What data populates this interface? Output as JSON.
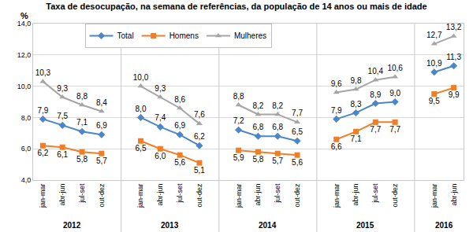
{
  "chart_data": {
    "type": "line",
    "title": "Taxa de desocupação, na semana de referências, da população de 14 anos ou mais de idade",
    "y_label": "%",
    "categories": [
      "jan-mar",
      "abr-jun",
      "jul-set",
      "out-dez",
      null,
      "jan-mar",
      "abr-jun",
      "jul-set",
      "out-dez",
      null,
      "jan-mar",
      "abr-jun",
      "jul-set",
      "out-dez",
      null,
      "jan-mar",
      "abr-jun",
      "jul-set",
      "out-dez",
      null,
      "jan-mar",
      "abr-jun"
    ],
    "group_labels": [
      "2012",
      "2012",
      "2012",
      "2012",
      null,
      "2013",
      "2013",
      "2013",
      "2013",
      null,
      "2014",
      "2014",
      "2014",
      "2014",
      null,
      "2015",
      "2015",
      "2015",
      "2015",
      null,
      "2016",
      "2016"
    ],
    "series": [
      {
        "name": "Total",
        "color": "#4a86c8",
        "marker": "diamond",
        "line_style": "solid",
        "values": [
          7.9,
          7.5,
          7.1,
          6.9,
          null,
          8.0,
          7.4,
          6.9,
          6.2,
          null,
          7.2,
          6.8,
          6.8,
          6.5,
          null,
          7.9,
          8.3,
          8.9,
          9.0,
          null,
          10.9,
          11.3
        ],
        "value_labels": [
          "7,9",
          "7,5",
          "7,1",
          "6,9",
          null,
          "8,0",
          "7,4",
          "6,9",
          "6,2",
          null,
          "7,2",
          "6,8",
          "6,8",
          "6,5",
          null,
          "7,9",
          "8,3",
          "8,9",
          "9,0",
          null,
          "10,9",
          "11,3"
        ]
      },
      {
        "name": "Homens",
        "color": "#f07d28",
        "marker": "square",
        "line_style": "solid",
        "values": [
          6.2,
          6.1,
          5.8,
          5.7,
          null,
          6.5,
          6.0,
          5.6,
          5.1,
          null,
          5.9,
          5.8,
          5.7,
          5.6,
          null,
          6.6,
          7.1,
          7.7,
          7.7,
          null,
          9.5,
          9.9
        ],
        "value_labels": [
          "6,2",
          "6,1",
          "5,8",
          "5,7",
          null,
          "6,5",
          "6,0",
          "5,6",
          "5,1",
          null,
          "5,9",
          "5,8",
          "5,7",
          "5,6",
          null,
          "6,6",
          "7,1",
          "7,7",
          "7,7",
          null,
          "9,5",
          "9,9"
        ]
      },
      {
        "name": "Mulheres",
        "color": "#a5a5a5",
        "marker": "triangle-up",
        "line_style": "solid",
        "values": [
          10.3,
          9.3,
          8.8,
          8.4,
          null,
          10.0,
          9.3,
          8.6,
          7.6,
          null,
          8.8,
          8.2,
          8.2,
          7.7,
          null,
          9.6,
          9.8,
          10.4,
          10.6,
          null,
          12.7,
          13.2
        ],
        "value_labels": [
          "10,3",
          "9,3",
          "8,8",
          "8,4",
          null,
          "10,0",
          "9,3",
          "8,6",
          "7,6",
          null,
          "8,8",
          "8,2",
          "8,2",
          "7,7",
          null,
          "9,6",
          "9,8",
          "10,4",
          "10,6",
          null,
          "12,7",
          "13,2"
        ]
      }
    ],
    "ylim": [
      4,
      14
    ],
    "yticks": [
      {
        "value": 4,
        "label": "4,0"
      },
      {
        "value": 6,
        "label": "6,0"
      },
      {
        "value": 8,
        "label": "8,0"
      },
      {
        "value": 10,
        "label": "10,0"
      },
      {
        "value": 12,
        "label": "12,0"
      },
      {
        "value": 14,
        "label": "14,0"
      }
    ],
    "grid": true,
    "legend": "top",
    "data_labels": true
  }
}
